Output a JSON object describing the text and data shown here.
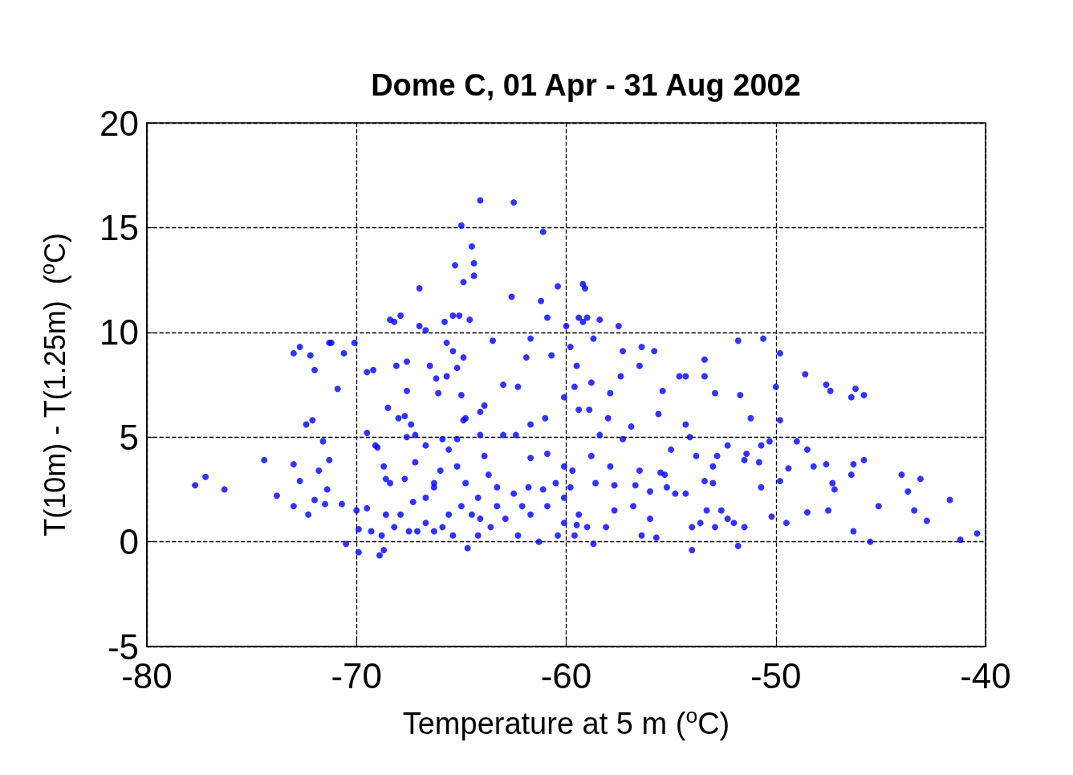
{
  "chart_data": {
    "type": "scatter",
    "title": "Dome C, 01 Apr - 31 Aug 2002",
    "xlabel": "Temperature at 5 m ($^{o}$C)",
    "ylabel": "T(10m) - T(1.25m)  ($^{o}$C)",
    "xlim": [
      -80,
      -40
    ],
    "xticks": [
      -80,
      -70,
      -60,
      -50,
      -40
    ],
    "ylim": [
      -5,
      20
    ],
    "yticks": [
      -5,
      0,
      5,
      10,
      15,
      20
    ],
    "grid": true,
    "marker": "circle",
    "series": [
      {
        "color": "#0000ff",
        "x": [
          -77.7,
          -77.2,
          -76.3,
          -74.4,
          -73.8,
          -73.0,
          -72.7,
          -72.2,
          -72.0,
          -72.4,
          -72.1,
          -71.6,
          -73.0,
          -72.7,
          -73.0,
          -72.3,
          -72.0,
          -71.8,
          -71.5,
          -71.4,
          -71.3,
          -71.3,
          -71.2,
          -70.9,
          -70.6,
          -70.1,
          -70.7,
          -70.5,
          -69.9,
          -70.0,
          -69.9,
          -69.5,
          -69.5,
          -69.5,
          -69.2,
          -69.1,
          -69.0,
          -69.3,
          -68.8,
          -68.9,
          -68.7,
          -68.7,
          -68.6,
          -68.5,
          -68.4,
          -68.2,
          -68.1,
          -67.9,
          -67.6,
          -67.6,
          -68.0,
          -67.7,
          -67.4,
          -67.2,
          -67.6,
          -67.0,
          -67.0,
          -66.7,
          -66.5,
          -66.2,
          -66.1,
          -65.7,
          -65.7,
          -65.8,
          -65.4,
          -65.1,
          -65.4,
          -65.2,
          -64.9,
          -65.0,
          -64.9,
          -64.6,
          -65.3,
          -65.0,
          -64.9,
          -64.5,
          -64.4,
          -64.4,
          -64.1,
          -62.5,
          -62.6,
          -61.1,
          -61.2,
          -60.9,
          -61.7,
          -60.4,
          -59.2,
          -59.1,
          -60.0,
          -59.4,
          -59.2,
          -59.0,
          -58.4,
          -57.5,
          -59.8,
          -58.7,
          -57.3,
          -56.4,
          -55.8,
          -57.4,
          -56.5,
          -55.4,
          -54.6,
          -54.3,
          -53.4,
          -53.4,
          -52.9,
          -51.8,
          -50.6,
          -49.8,
          -50.0,
          -48.6,
          -47.6,
          -47.4,
          -46.4,
          -46.2,
          -45.8,
          -51.7,
          -51.2,
          -49.8,
          -50.3,
          -49.0,
          -48.5,
          -48.2,
          -47.6,
          -47.3,
          -47.2,
          -46.3,
          -46.4,
          -45.8,
          -45.1,
          -44.0,
          -43.7,
          -43.1,
          -43.4,
          -42.8,
          -41.7,
          -41.2,
          -40.4,
          -46.3,
          -45.5,
          -47.5,
          -48.5,
          -49.5,
          -50.2,
          -49.4,
          -49.8,
          -50.7,
          -50.8,
          -50.7,
          -51.4,
          -51.5,
          -52.3,
          -52.8,
          -53.0,
          -53.4,
          -53.0,
          -53.8,
          -54.1,
          -54.3,
          -55.0,
          -55.6,
          -55.5,
          -55.3,
          -56.0,
          -56.5,
          -56.7,
          -56.9,
          -57.3,
          -57.9,
          -57.7,
          -58.6,
          -58.8,
          -58.4,
          -58.0,
          -57.9,
          -58.9,
          -59.4,
          -59.6,
          -59.5,
          -58.8,
          -60.1,
          -61.0,
          -61.7,
          -62.3,
          -60.7,
          -61.9,
          -63.0,
          -63.5,
          -63.9,
          -64.1,
          -64.1,
          -63.9,
          -63.0,
          -62.4,
          -61.7,
          -60.9,
          -60.1,
          -59.7,
          -59.8,
          -60.5,
          -61.1,
          -61.8,
          -62.5,
          -63.3,
          -63.7,
          -64.2,
          -64.8,
          -65.2,
          -65.6,
          -66.0,
          -66.3,
          -66.7,
          -67.3,
          -67.7,
          -67.9,
          -67.5,
          -66.7,
          -66.3,
          -65.9,
          -65.4,
          -64.7,
          -64.2,
          -63.6,
          -62.9,
          -62.3,
          -61.3,
          -60.4,
          -60.1,
          -59.6,
          -58.7,
          -59.5,
          -59.0,
          -59.4,
          -61.7,
          -62.1,
          -60.9,
          -60.1,
          -65.6,
          -65.0,
          -64.5,
          -64.1,
          -63.3,
          -68.6,
          -68.2,
          -67.1,
          -66.3,
          -68.4,
          -67.2,
          -66.7,
          -65.9,
          -65.2,
          -64.8,
          -55.2,
          -54.8,
          -54.3,
          -54.0,
          -54.0,
          -53.6,
          -53.3,
          -52.9,
          -52.6,
          -52.3,
          -52.0,
          -51.8,
          -51.5,
          -56.4,
          -55.7,
          -56.0,
          -56.8,
          -58.1,
          -57.7
        ],
        "values": [
          2.7,
          3.1,
          2.5,
          3.9,
          2.2,
          9.0,
          9.3,
          8.9,
          8.2,
          5.6,
          5.8,
          4.8,
          3.7,
          2.9,
          1.7,
          1.3,
          2.0,
          3.4,
          1.8,
          2.5,
          3.9,
          9.5,
          9.5,
          7.3,
          9.0,
          9.5,
          1.8,
          -0.1,
          -0.5,
          1.5,
          0.6,
          1.6,
          5.2,
          8.1,
          8.2,
          4.6,
          4.5,
          0.5,
          0.3,
          -0.65,
          -0.4,
          3.6,
          3.0,
          6.4,
          10.6,
          10.5,
          8.4,
          10.8,
          8.6,
          7.2,
          5.9,
          6.0,
          5.6,
          5.1,
          5.0,
          12.1,
          10.3,
          10.1,
          8.4,
          7.8,
          7.1,
          7.9,
          9.5,
          10.5,
          10.8,
          10.8,
          9.1,
          8.3,
          8.8,
          7.0,
          5.8,
          10.6,
          13.2,
          15.1,
          12.4,
          14.1,
          13.3,
          12.7,
          16.3,
          16.2,
          11.7,
          14.8,
          11.5,
          10.7,
          9.7,
          12.2,
          12.3,
          12.1,
          10.3,
          10.7,
          10.5,
          10.7,
          10.6,
          10.3,
          9.3,
          9.7,
          9.1,
          9.3,
          9.1,
          7.9,
          8.4,
          7.2,
          7.9,
          7.9,
          8.7,
          7.9,
          7.1,
          9.6,
          9.7,
          9.0,
          7.4,
          8.0,
          7.5,
          7.2,
          6.9,
          7.3,
          7.0,
          7.0,
          5.9,
          5.8,
          4.8,
          4.8,
          4.4,
          3.6,
          3.7,
          2.8,
          2.5,
          3.7,
          3.2,
          3.9,
          1.7,
          3.2,
          2.4,
          3.0,
          1.5,
          1.0,
          2.0,
          0.1,
          0.4,
          0.5,
          0.0,
          1.5,
          1.4,
          0.9,
          1.2,
          3.5,
          2.9,
          2.6,
          3.8,
          4.6,
          4.2,
          3.9,
          4.6,
          4.1,
          3.6,
          2.9,
          2.8,
          4.1,
          5.0,
          5.6,
          4.4,
          6.1,
          3.3,
          3.2,
          2.4,
          3.4,
          2.7,
          5.5,
          4.9,
          3.6,
          2.7,
          2.8,
          4.1,
          5.1,
          5.9,
          7.1,
          6.3,
          6.3,
          7.4,
          8.4,
          7.6,
          6.9,
          5.9,
          5.6,
          7.4,
          8.9,
          8.8,
          7.5,
          9.6,
          6.5,
          6.2,
          5.1,
          4.1,
          5.1,
          5.1,
          4.0,
          4.2,
          3.6,
          3.4,
          2.6,
          2.8,
          2.5,
          2.6,
          2.3,
          2.6,
          3.2,
          2.1,
          2.8,
          3.6,
          4.4,
          3.4,
          2.6,
          2.1,
          1.9,
          3.0,
          1.3,
          0.5,
          0.9,
          0.5,
          0.7,
          0.3,
          -0.3,
          0.3,
          0.7,
          1.1,
          0.3,
          0.0,
          0.3,
          0.9,
          0.3,
          -0.1,
          0.8,
          0.7,
          1.3,
          1.3,
          1.7,
          1.7,
          2.1,
          1.3,
          1.7,
          1.3,
          1.1,
          1.7,
          1.3,
          0.7,
          0.5,
          2.8,
          2.8,
          3.8,
          4.6,
          4.9,
          4.9,
          5.9,
          2.6,
          2.3,
          2.3,
          -0.4,
          0.7,
          0.9,
          1.5,
          0.7,
          1.5,
          1.1,
          0.9,
          -0.2,
          0.7,
          0.3,
          0.2,
          1.1,
          1.7,
          0.7,
          1.5
        ]
      }
    ]
  }
}
